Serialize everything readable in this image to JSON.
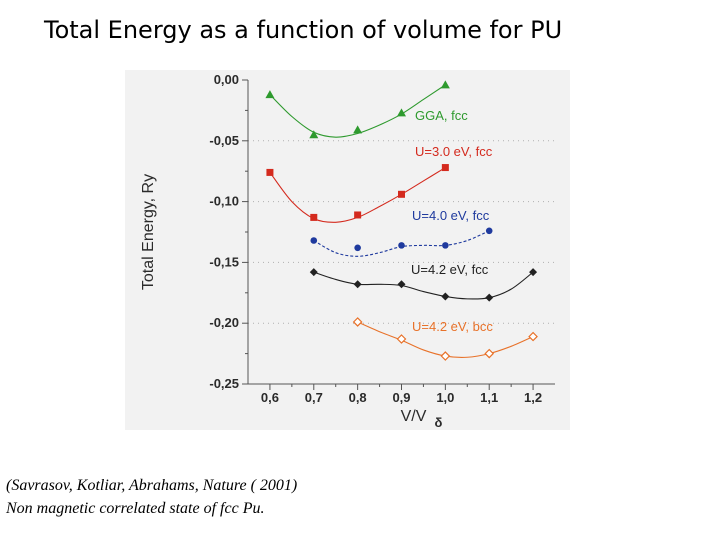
{
  "slide": {
    "title": "Total Energy as a function of volume for PU",
    "citation_line1": "(Savrasov, Kotliar, Abrahams,  Nature ( 2001)",
    "citation_line2": "Non magnetic correlated state of fcc Pu."
  },
  "chart_data": {
    "type": "line",
    "xlabel": "V/V",
    "xlabel_subscript": "δ",
    "ylabel": "Total Energy, Ry",
    "xlim": [
      0.55,
      1.25
    ],
    "ylim": [
      -0.25,
      0.0
    ],
    "x_ticks": [
      0.6,
      0.7,
      0.8,
      0.9,
      1.0,
      1.1,
      1.2
    ],
    "x_tick_labels": [
      "0,6",
      "0,7",
      "0,8",
      "0,9",
      "1,0",
      "1,1",
      "1,2"
    ],
    "y_ticks": [
      0.0,
      -0.05,
      -0.1,
      -0.15,
      -0.2,
      -0.25
    ],
    "y_tick_labels": [
      "0,00",
      "-0,05",
      "-0,10",
      "-0,15",
      "-0,20",
      "-0,25"
    ],
    "series": [
      {
        "name": "GGA, fcc",
        "color": "#2e9a2e",
        "marker": "triangle",
        "line": "solid",
        "x": [
          0.6,
          0.7,
          0.8,
          0.9,
          1.0
        ],
        "y": [
          -0.012,
          -0.045,
          -0.041,
          -0.027,
          -0.004
        ],
        "curve": [
          [
            0.6,
            -0.012
          ],
          [
            0.65,
            -0.03
          ],
          [
            0.7,
            -0.043
          ],
          [
            0.75,
            -0.047
          ],
          [
            0.8,
            -0.044
          ],
          [
            0.85,
            -0.037
          ],
          [
            0.9,
            -0.028
          ],
          [
            0.95,
            -0.016
          ],
          [
            1.0,
            -0.004
          ]
        ]
      },
      {
        "name": "U=3.0 eV, fcc",
        "color": "#d42a1e",
        "marker": "square",
        "line": "solid",
        "x": [
          0.6,
          0.7,
          0.8,
          0.9,
          1.0
        ],
        "y": [
          -0.076,
          -0.113,
          -0.111,
          -0.094,
          -0.072
        ],
        "curve": [
          [
            0.6,
            -0.076
          ],
          [
            0.65,
            -0.1
          ],
          [
            0.7,
            -0.114
          ],
          [
            0.75,
            -0.117
          ],
          [
            0.8,
            -0.113
          ],
          [
            0.85,
            -0.104
          ],
          [
            0.9,
            -0.094
          ],
          [
            0.95,
            -0.083
          ],
          [
            1.0,
            -0.072
          ]
        ]
      },
      {
        "name": "U=4.0 eV, fcc",
        "color": "#1f3a9e",
        "marker": "circle",
        "line": "dashed",
        "x": [
          0.7,
          0.8,
          0.9,
          1.0,
          1.1
        ],
        "y": [
          -0.132,
          -0.138,
          -0.136,
          -0.136,
          -0.124
        ],
        "curve": [
          [
            0.7,
            -0.132
          ],
          [
            0.75,
            -0.142
          ],
          [
            0.8,
            -0.145
          ],
          [
            0.85,
            -0.142
          ],
          [
            0.9,
            -0.137
          ],
          [
            0.95,
            -0.136
          ],
          [
            1.0,
            -0.136
          ],
          [
            1.05,
            -0.132
          ],
          [
            1.1,
            -0.124
          ]
        ]
      },
      {
        "name": "U=4.2 eV, fcc",
        "color": "#222222",
        "marker": "diamond",
        "line": "solid",
        "x": [
          0.7,
          0.8,
          0.9,
          1.0,
          1.1,
          1.2
        ],
        "y": [
          -0.158,
          -0.168,
          -0.168,
          -0.178,
          -0.179,
          -0.158
        ],
        "curve": [
          [
            0.7,
            -0.158
          ],
          [
            0.75,
            -0.164
          ],
          [
            0.8,
            -0.168
          ],
          [
            0.85,
            -0.168
          ],
          [
            0.9,
            -0.169
          ],
          [
            0.95,
            -0.174
          ],
          [
            1.0,
            -0.178
          ],
          [
            1.05,
            -0.18
          ],
          [
            1.1,
            -0.179
          ],
          [
            1.15,
            -0.172
          ],
          [
            1.2,
            -0.158
          ]
        ]
      },
      {
        "name": "U=4.2 eV, bcc",
        "color": "#e8722a",
        "marker": "open-diamond",
        "line": "solid",
        "x": [
          0.8,
          0.9,
          1.0,
          1.1,
          1.2
        ],
        "y": [
          -0.199,
          -0.213,
          -0.227,
          -0.225,
          -0.211
        ],
        "curve": [
          [
            0.8,
            -0.199
          ],
          [
            0.85,
            -0.207
          ],
          [
            0.9,
            -0.214
          ],
          [
            0.95,
            -0.222
          ],
          [
            1.0,
            -0.227
          ],
          [
            1.05,
            -0.228
          ],
          [
            1.1,
            -0.225
          ],
          [
            1.15,
            -0.219
          ],
          [
            1.2,
            -0.211
          ]
        ]
      }
    ]
  }
}
